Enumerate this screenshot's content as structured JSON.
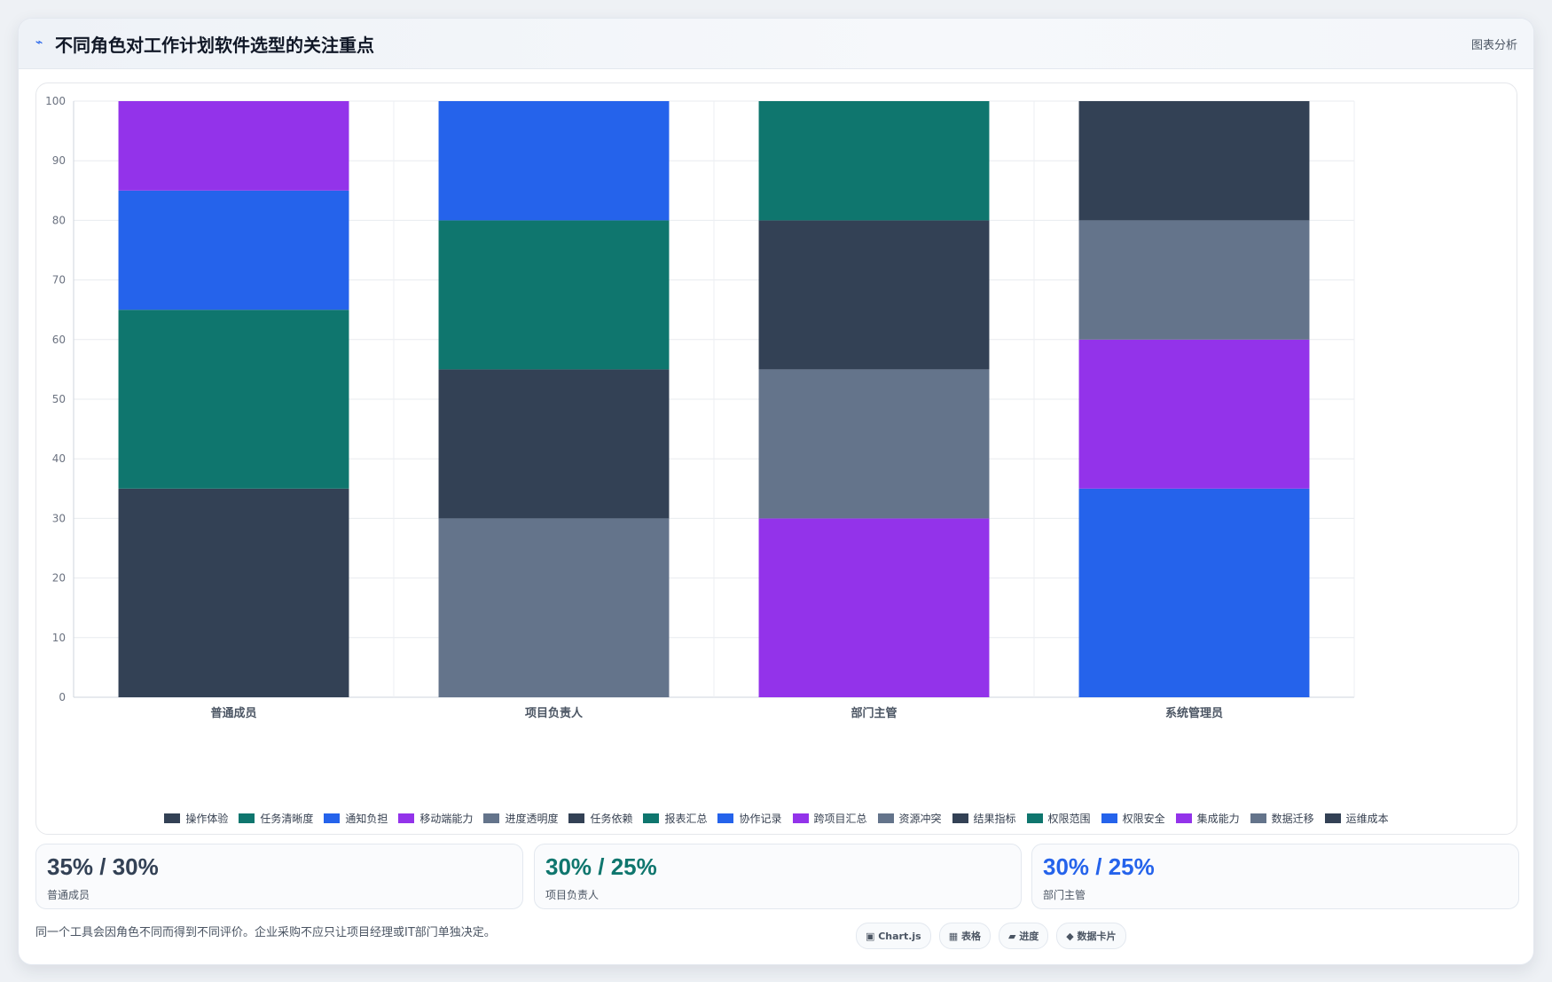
{
  "header": {
    "icon": "chart-icon",
    "title": "不同角色对工作计划软件选型的关注重点",
    "action_label": "图表分析"
  },
  "chart_data": {
    "type": "bar",
    "stacked": true,
    "categories": [
      "普通成员",
      "项目负责人",
      "部门主管",
      "系统管理员"
    ],
    "ylim": [
      0,
      100
    ],
    "yticks": [
      0,
      10,
      20,
      30,
      40,
      50,
      60,
      70,
      80,
      90,
      100
    ],
    "grid": true,
    "legend_position": "bottom",
    "series": [
      {
        "name": "操作体验",
        "color": "#334155",
        "values": [
          35,
          0,
          0,
          0
        ]
      },
      {
        "name": "任务清晰度",
        "color": "#0f766e",
        "values": [
          30,
          0,
          0,
          0
        ]
      },
      {
        "name": "通知负担",
        "color": "#2563eb",
        "values": [
          20,
          0,
          0,
          0
        ]
      },
      {
        "name": "移动端能力",
        "color": "#9333ea",
        "values": [
          15,
          0,
          0,
          0
        ]
      },
      {
        "name": "进度透明度",
        "color": "#64748b",
        "values": [
          0,
          30,
          0,
          0
        ]
      },
      {
        "name": "任务依赖",
        "color": "#334155",
        "values": [
          0,
          25,
          0,
          0
        ]
      },
      {
        "name": "报表汇总",
        "color": "#0f766e",
        "values": [
          0,
          25,
          0,
          0
        ]
      },
      {
        "name": "协作记录",
        "color": "#2563eb",
        "values": [
          0,
          20,
          0,
          0
        ]
      },
      {
        "name": "跨项目汇总",
        "color": "#9333ea",
        "values": [
          0,
          0,
          30,
          0
        ]
      },
      {
        "name": "资源冲突",
        "color": "#64748b",
        "values": [
          0,
          0,
          25,
          0
        ]
      },
      {
        "name": "结果指标",
        "color": "#334155",
        "values": [
          0,
          0,
          25,
          0
        ]
      },
      {
        "name": "权限范围",
        "color": "#0f766e",
        "values": [
          0,
          0,
          20,
          0
        ]
      },
      {
        "name": "权限安全",
        "color": "#2563eb",
        "values": [
          0,
          0,
          0,
          35
        ]
      },
      {
        "name": "集成能力",
        "color": "#9333ea",
        "values": [
          0,
          0,
          0,
          25
        ]
      },
      {
        "name": "数据迁移",
        "color": "#64748b",
        "values": [
          0,
          0,
          0,
          20
        ]
      },
      {
        "name": "运维成本",
        "color": "#334155",
        "values": [
          0,
          0,
          0,
          20
        ]
      }
    ]
  },
  "stats": [
    {
      "value": "35% / 30%",
      "label": "普通成员",
      "color": "#334155"
    },
    {
      "value": "30% / 25%",
      "label": "项目负责人",
      "color": "#0f766e"
    },
    {
      "value": "30% / 25%",
      "label": "部门主管",
      "color": "#2563eb"
    }
  ],
  "footer": {
    "note": "同一个工具会因角色不同而得到不同评价。企业采购不应只让项目经理或IT部门单独决定。",
    "chips": [
      {
        "icon": "▣",
        "label": "Chart.js"
      },
      {
        "icon": "▦",
        "label": "表格"
      },
      {
        "icon": "▰",
        "label": "进度"
      },
      {
        "icon": "◆",
        "label": "数据卡片"
      }
    ]
  }
}
